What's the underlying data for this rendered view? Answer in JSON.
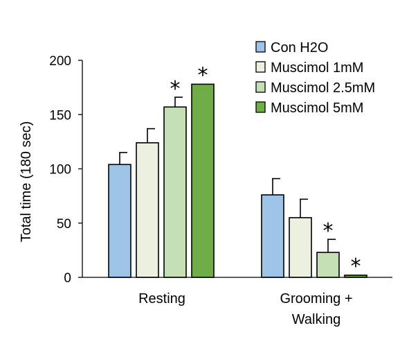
{
  "chart_data": {
    "type": "bar",
    "title": "",
    "xlabel": "",
    "ylabel": "Total time (180 sec)",
    "ylim": [
      0,
      200
    ],
    "yticks": [
      0,
      50,
      100,
      150,
      200
    ],
    "categories": [
      "Resting",
      "Grooming + Walking"
    ],
    "category_lines": [
      [
        "Resting"
      ],
      [
        "Grooming +",
        "Walking"
      ]
    ],
    "legend_position": "top-right",
    "grid": false,
    "series": [
      {
        "name": "Con H2O",
        "color": "#9dc3e6",
        "values": [
          104,
          76
        ],
        "errors": [
          11,
          15
        ],
        "significant": [
          false,
          false
        ]
      },
      {
        "name": "Muscimol 1mM",
        "color": "#ebf1de",
        "values": [
          124,
          55
        ],
        "errors": [
          13,
          17
        ],
        "significant": [
          false,
          false
        ]
      },
      {
        "name": "Muscimol 2.5mM",
        "color": "#c5e0b4",
        "values": [
          157,
          23
        ],
        "errors": [
          9,
          12
        ],
        "significant": [
          true,
          true
        ]
      },
      {
        "name": "Muscimol 5mM",
        "color": "#70ad47",
        "values": [
          178,
          2
        ],
        "errors": [
          0.5,
          0.5
        ],
        "significant": [
          true,
          true
        ]
      }
    ],
    "significance_marker": "*"
  }
}
